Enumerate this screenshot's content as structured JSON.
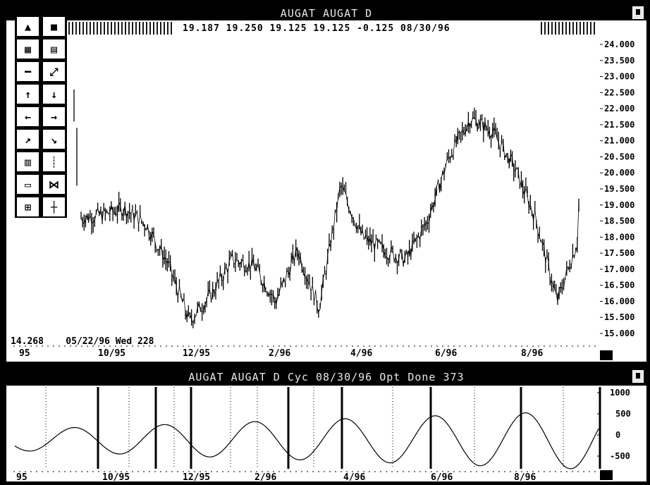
{
  "main": {
    "title": "AUGAT AUGAT D",
    "quote": [
      "19.187",
      "19.250",
      "19.125",
      "19.125",
      "-0.125",
      "08/30/96"
    ],
    "info": [
      "14.268",
      "05/22/96 Wed 228"
    ]
  },
  "cycle": {
    "title": "AUGAT AUGAT D Cyc 08/30/96 Opt Done 373"
  },
  "toolbar": {
    "buttons": [
      "chart-icon",
      "grid-icon",
      "zoom-icon",
      "layout-icon",
      "minus-icon",
      "expand-icon",
      "up-arrow-icon",
      "down-arrow-icon",
      "left-arrow-icon",
      "right-arrow-icon",
      "trend-up-icon",
      "trend-down-icon",
      "bars-icon",
      "ticks-icon",
      "channel-icon",
      "bowtie-icon",
      "fib-icon",
      "cross-icon"
    ]
  },
  "chart_data": [
    {
      "type": "line",
      "title": "AUGAT AUGAT D",
      "x_tick_labels": [
        "95",
        "10/95",
        "12/95",
        "2/96",
        "4/96",
        "6/96",
        "8/96"
      ],
      "y_tick_labels": [
        "24.000",
        "23.500",
        "23.000",
        "22.500",
        "22.000",
        "21.500",
        "21.000",
        "20.500",
        "20.000",
        "19.500",
        "19.000",
        "18.500",
        "18.000",
        "17.500",
        "17.000",
        "16.500",
        "16.000",
        "15.500",
        "15.000"
      ],
      "ylim": [
        15.0,
        24.0
      ],
      "x": [
        "8/95",
        "9/95",
        "10/95",
        "10/95",
        "11/95",
        "11/95",
        "12/95",
        "12/95",
        "1/96",
        "1/96",
        "2/96",
        "2/96",
        "3/96",
        "3/96",
        "4/96",
        "4/96",
        "5/96",
        "5/96",
        "6/96",
        "6/96",
        "7/96",
        "7/96",
        "8/96",
        "8/96"
      ],
      "values": [
        18.6,
        18.7,
        18.9,
        18.4,
        17.2,
        15.4,
        16.2,
        17.3,
        17.1,
        16.0,
        17.6,
        15.8,
        19.6,
        18.0,
        17.6,
        17.3,
        18.5,
        20.5,
        21.7,
        21.3,
        20.2,
        18.6,
        16.0,
        18.0
      ],
      "series_end": 19.125
    },
    {
      "type": "line",
      "title": "AUGAT AUGAT D Cyc 08/30/96 Opt Done 373",
      "y_tick_labels": [
        "1000",
        "500",
        "0",
        "-500"
      ],
      "ylim": [
        -800,
        1000
      ],
      "x_tick_labels": [
        "95",
        "10/95",
        "12/95",
        "2/96",
        "4/96",
        "6/96",
        "8/96"
      ],
      "cycle_markers": 9
    }
  ]
}
